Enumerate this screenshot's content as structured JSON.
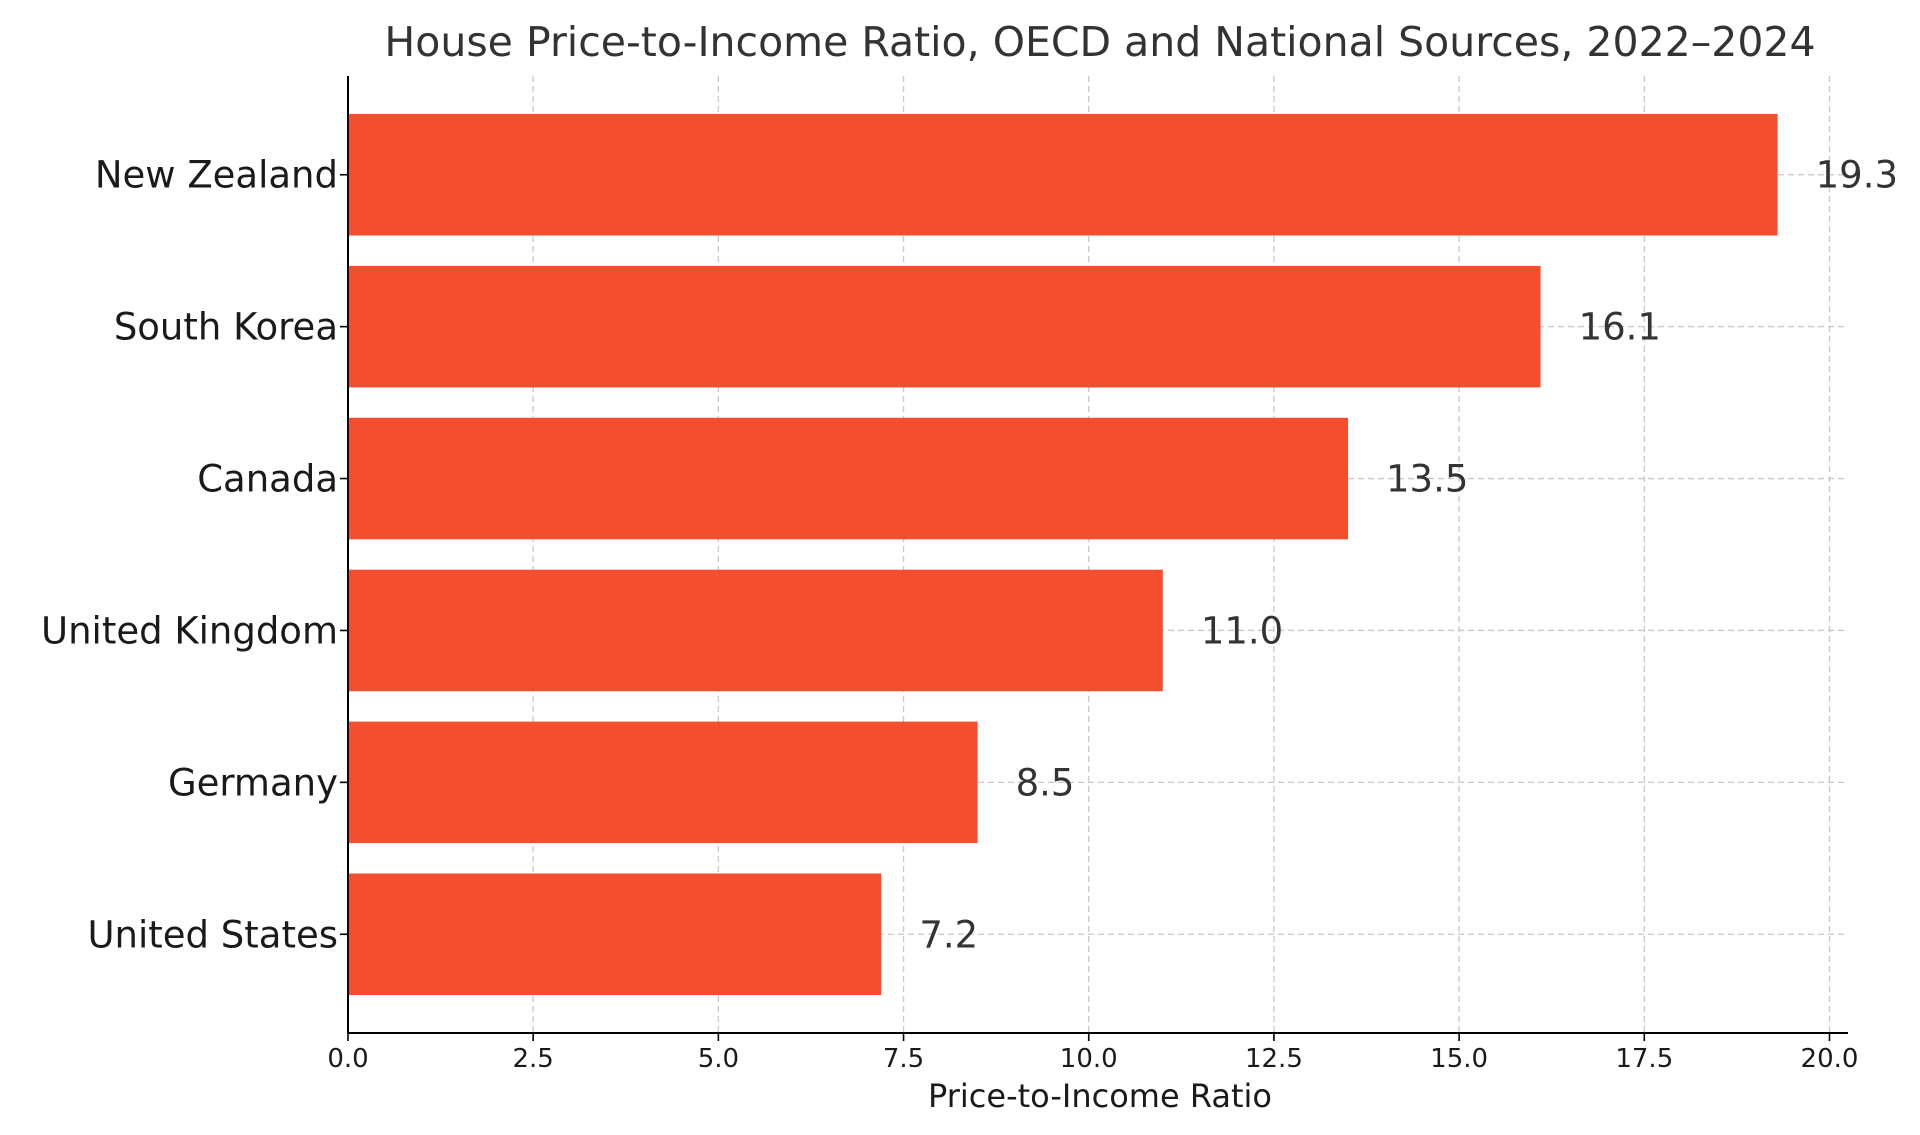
{
  "chart_data": {
    "type": "bar",
    "orientation": "horizontal",
    "title": "House Price-to-Income Ratio, OECD and National Sources, 2022–2024",
    "xlabel": "Price-to-Income Ratio",
    "ylabel": "",
    "categories": [
      "New Zealand",
      "South Korea",
      "Canada",
      "United Kingdom",
      "Germany",
      "United States"
    ],
    "values": [
      19.3,
      16.1,
      13.5,
      11.0,
      8.5,
      7.2
    ],
    "value_labels": [
      "19.3",
      "16.1",
      "13.5",
      "11.0",
      "8.5",
      "7.2"
    ],
    "xlim": [
      0,
      20.25
    ],
    "xticks": [
      0,
      2.5,
      5,
      7.5,
      10,
      12.5,
      15,
      17.5,
      20
    ],
    "xtick_labels": [
      "0.0",
      "2.5",
      "5.0",
      "7.5",
      "10.0",
      "12.5",
      "15.0",
      "17.5",
      "20.0"
    ],
    "grid": true,
    "bar_color": "#f44e2f"
  }
}
